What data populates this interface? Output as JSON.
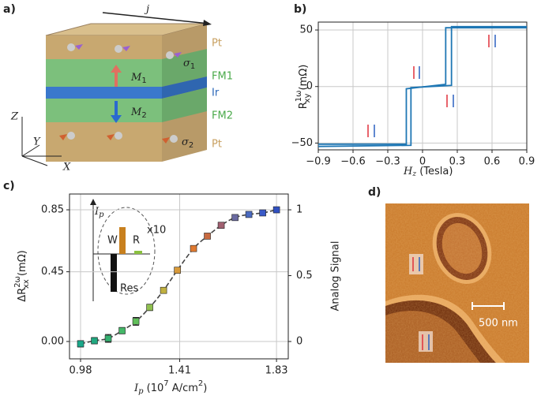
{
  "panel_labels": [
    "a)",
    "b)",
    "c)",
    "d)"
  ],
  "stack_diagram": {
    "current": "j",
    "layers": [
      "Pt",
      "FM1",
      "Ir",
      "FM2",
      "Pt"
    ],
    "moments": [
      {
        "base": "M",
        "sub": "1"
      },
      {
        "base": "M",
        "sub": "2"
      }
    ],
    "spins": [
      {
        "base": "σ",
        "sub": "1"
      },
      {
        "base": "σ",
        "sub": "2"
      }
    ],
    "axes": [
      "Z",
      "Y",
      "X"
    ]
  },
  "afm_image": {
    "scale_bar": "500 nm"
  },
  "chart_data": [
    {
      "type": "line",
      "xlabel": {
        "base": "H",
        "sub": "z",
        "unit": " (Tesla)"
      },
      "ylabel": {
        "base": "R",
        "sup": "1ω",
        "sub": "xy",
        "unit": " (mΩ)"
      },
      "series": [
        {
          "color": "#1f77b4",
          "x": [
            -0.9,
            -0.1,
            -0.1,
            0.25,
            0.25,
            0.9
          ],
          "values": [
            -53,
            -52,
            -1,
            1,
            53,
            53
          ]
        },
        {
          "color": "#1f77b4",
          "x": [
            0.9,
            0.2,
            0.2,
            -0.14,
            -0.14,
            -0.9
          ],
          "values": [
            52,
            52,
            2,
            -2,
            -51,
            -51
          ]
        }
      ],
      "xlim": [
        -0.9,
        0.9
      ],
      "xticks": [
        {
          "value": -0.9,
          "label": "−0.9"
        },
        {
          "value": -0.6,
          "label": "−0.6"
        },
        {
          "value": -0.3,
          "label": "−0.3"
        },
        0,
        0.3,
        0.6,
        0.9
      ],
      "ylim": [
        -56,
        57
      ],
      "yticks": [
        {
          "value": -50,
          "label": "−50"
        },
        0,
        50
      ],
      "grid": true
    },
    {
      "type": "scatter",
      "xlabel": [
        "I",
        "p",
        " (10",
        "7",
        " A/cm",
        "2",
        ")"
      ],
      "ylabel": {
        "base": "ΔR",
        "sup": "2ω",
        "sub": "xx",
        "unit": " (mΩ)"
      },
      "y2label": "Analog Signal",
      "x": [
        0.98,
        1.04,
        1.1,
        1.16,
        1.22,
        1.28,
        1.34,
        1.4,
        1.47,
        1.53,
        1.59,
        1.65,
        1.71,
        1.77,
        1.83
      ],
      "values": [
        -0.015,
        0.005,
        0.02,
        0.07,
        0.13,
        0.22,
        0.33,
        0.46,
        0.6,
        0.68,
        0.75,
        0.8,
        0.82,
        0.83,
        0.85
      ],
      "errors": [
        0.02,
        0.02,
        0.025,
        0.02,
        0.025,
        0.02,
        0.015,
        0.015,
        0.015,
        0.015,
        0.015,
        0.015,
        0.015,
        0.015,
        0.015
      ],
      "colors": [
        "#1aa88a",
        "#20a880",
        "#35b070",
        "#45b868",
        "#60bf5a",
        "#90c050",
        "#c0b040",
        "#d89a3a",
        "#e07a30",
        "#c86a40",
        "#a06070",
        "#6a6aa0",
        "#4a6ac0",
        "#3a5ac8",
        "#3050c0"
      ],
      "xlim": [
        0.932,
        1.881
      ],
      "xticks": [
        0.98,
        1.41,
        1.83
      ],
      "ylim": [
        -0.112,
        0.952
      ],
      "yticks": [
        {
          "value": 0,
          "label": "0.00"
        },
        0.45,
        0.85
      ],
      "y2lim": [
        -0.1318,
        1.12
      ],
      "y2ticks": [
        0,
        0.5,
        1
      ],
      "grid": true,
      "inset": {
        "axis_label": {
          "base": "I",
          "sub": "p"
        },
        "bars": [
          "W",
          "R",
          "Res"
        ],
        "multiplier": "x10"
      }
    }
  ]
}
